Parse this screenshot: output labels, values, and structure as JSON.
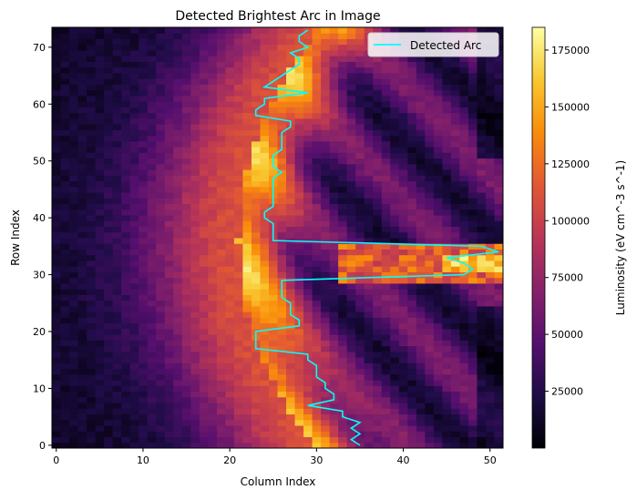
{
  "chart_data": {
    "type": "heatmap",
    "title": "Detected Brightest Arc in Image",
    "xlabel": "Column Index",
    "ylabel": "Row Index",
    "xlim": [
      -0.5,
      51.5
    ],
    "ylim": [
      -0.5,
      73.5
    ],
    "xticks": [
      0,
      10,
      20,
      30,
      40,
      50
    ],
    "yticks": [
      0,
      10,
      20,
      30,
      40,
      50,
      60,
      70
    ],
    "colormap": "inferno",
    "colorbar": {
      "label": "Luminosity (eV cm^-3 s^-1)",
      "range": [
        0,
        185000
      ],
      "ticks": [
        25000,
        50000,
        75000,
        100000,
        125000,
        150000,
        175000
      ]
    },
    "legend": {
      "placement": "top-right",
      "entries": [
        "Detected Arc"
      ]
    },
    "series": [
      {
        "name": "Detected Arc",
        "color": "#00ffff",
        "rows": [
          0,
          1,
          2,
          3,
          4,
          5,
          6,
          7,
          8,
          9,
          10,
          11,
          12,
          13,
          14,
          15,
          16,
          17,
          18,
          19,
          20,
          21,
          22,
          23,
          24,
          25,
          26,
          27,
          28,
          29,
          30,
          31,
          32,
          33,
          34,
          35,
          36,
          37,
          38,
          39,
          40,
          41,
          42,
          43,
          44,
          45,
          46,
          47,
          48,
          49,
          50,
          51,
          52,
          53,
          54,
          55,
          56,
          57,
          58,
          59,
          60,
          61,
          62,
          63,
          64,
          65,
          66,
          67,
          68,
          69,
          70,
          71,
          72,
          73
        ],
        "columns": [
          35,
          34,
          35,
          34,
          35,
          33,
          33,
          29,
          32,
          32,
          31,
          31,
          30,
          30,
          30,
          29,
          29,
          23,
          23,
          23,
          23,
          28,
          28,
          27,
          27,
          27,
          26,
          26,
          26,
          26,
          47,
          48,
          47,
          45,
          51,
          49,
          25,
          25,
          25,
          25,
          24,
          24,
          25,
          25,
          25,
          25,
          25,
          25,
          26,
          25,
          25,
          25,
          26,
          26,
          26,
          26,
          27,
          27,
          23,
          23,
          24,
          24,
          29,
          24,
          25,
          26,
          27,
          28,
          28,
          27,
          29,
          28,
          28,
          29
        ]
      }
    ]
  }
}
